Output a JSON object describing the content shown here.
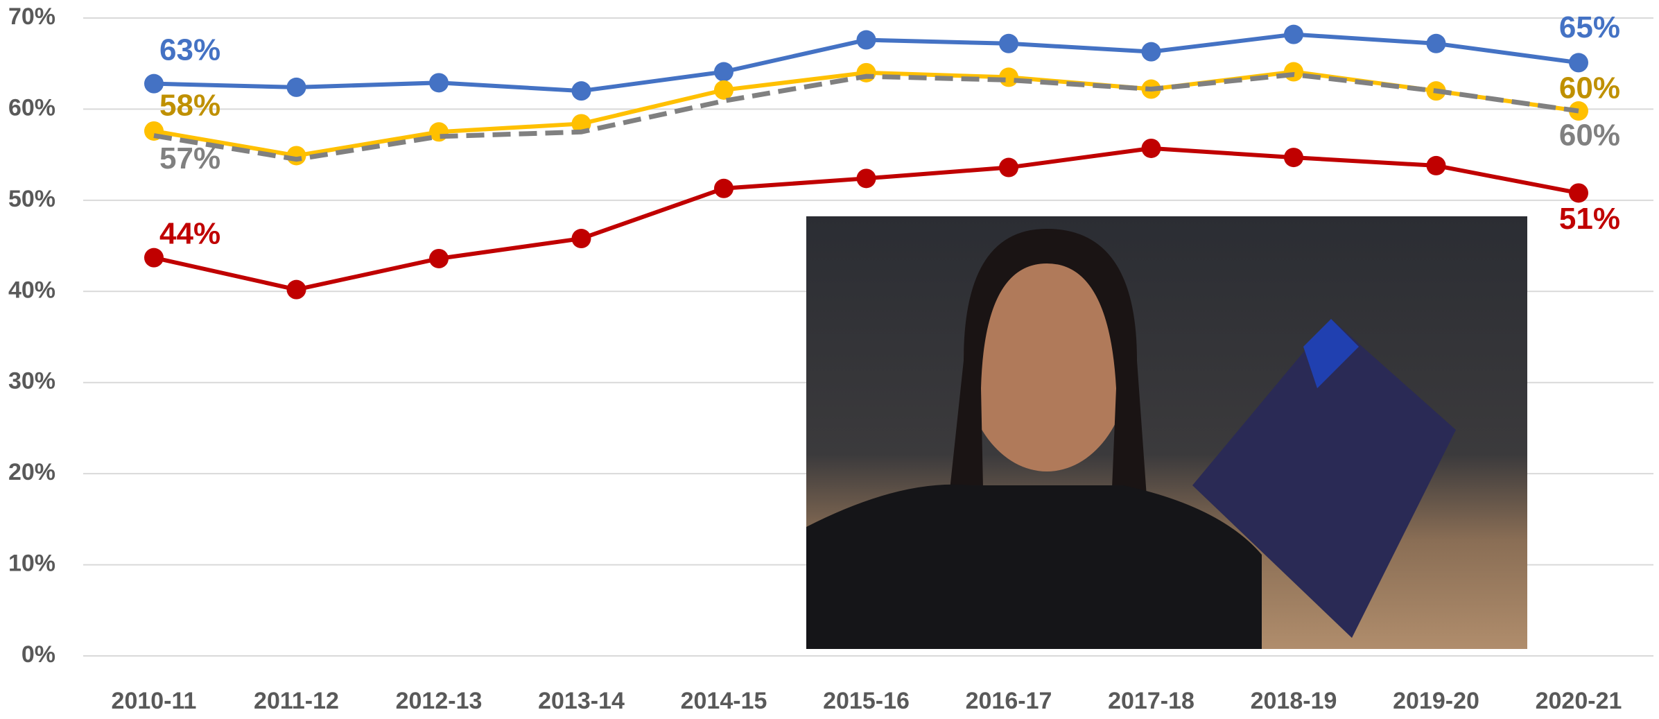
{
  "chart_data": {
    "type": "line",
    "categories": [
      "2010-11",
      "2011-12",
      "2012-13",
      "2013-14",
      "2014-15",
      "2015-16",
      "2016-17",
      "2017-18",
      "2018-19",
      "2019-20",
      "2020-21"
    ],
    "series": [
      {
        "color": "#4472c4",
        "label_color": "#4472c4",
        "dashed": false,
        "values": [
          62.8,
          62.4,
          62.9,
          62.0,
          64.1,
          67.6,
          67.2,
          66.3,
          68.2,
          67.2,
          65.1
        ],
        "value_labels": [
          "63%",
          null,
          null,
          null,
          null,
          null,
          null,
          null,
          null,
          null,
          "65%"
        ]
      },
      {
        "color": "#ffc000",
        "label_color": "#bf9000",
        "dashed": false,
        "values": [
          57.6,
          54.9,
          57.5,
          58.4,
          62.1,
          64.0,
          63.5,
          62.2,
          64.1,
          62.0,
          59.8
        ],
        "value_labels": [
          "58%",
          null,
          null,
          null,
          null,
          null,
          null,
          null,
          null,
          null,
          "60%"
        ]
      },
      {
        "color": "#808080",
        "label_color": "#808080",
        "dashed": true,
        "values": [
          57.1,
          54.5,
          57.0,
          57.5,
          60.9,
          63.6,
          63.2,
          62.2,
          63.8,
          62.0,
          59.8
        ],
        "value_labels": [
          "57%",
          null,
          null,
          null,
          null,
          null,
          null,
          null,
          null,
          null,
          "60%"
        ]
      },
      {
        "color": "#c00000",
        "label_color": "#c00000",
        "dashed": false,
        "values": [
          43.7,
          40.2,
          43.6,
          45.8,
          51.3,
          52.4,
          53.6,
          55.7,
          54.7,
          53.8,
          50.8
        ],
        "value_labels": [
          "44%",
          null,
          null,
          null,
          null,
          null,
          null,
          null,
          null,
          null,
          "51%"
        ]
      }
    ],
    "ylim": [
      0,
      70
    ],
    "yticks": [
      {
        "value": 0,
        "label": "0%"
      },
      {
        "value": 10,
        "label": "10%"
      },
      {
        "value": 20,
        "label": "20%"
      },
      {
        "value": 30,
        "label": "30%"
      },
      {
        "value": 40,
        "label": "40%"
      },
      {
        "value": 50,
        "label": "50%"
      },
      {
        "value": 60,
        "label": "60%"
      },
      {
        "value": 70,
        "label": "70%"
      }
    ],
    "grid": true
  }
}
